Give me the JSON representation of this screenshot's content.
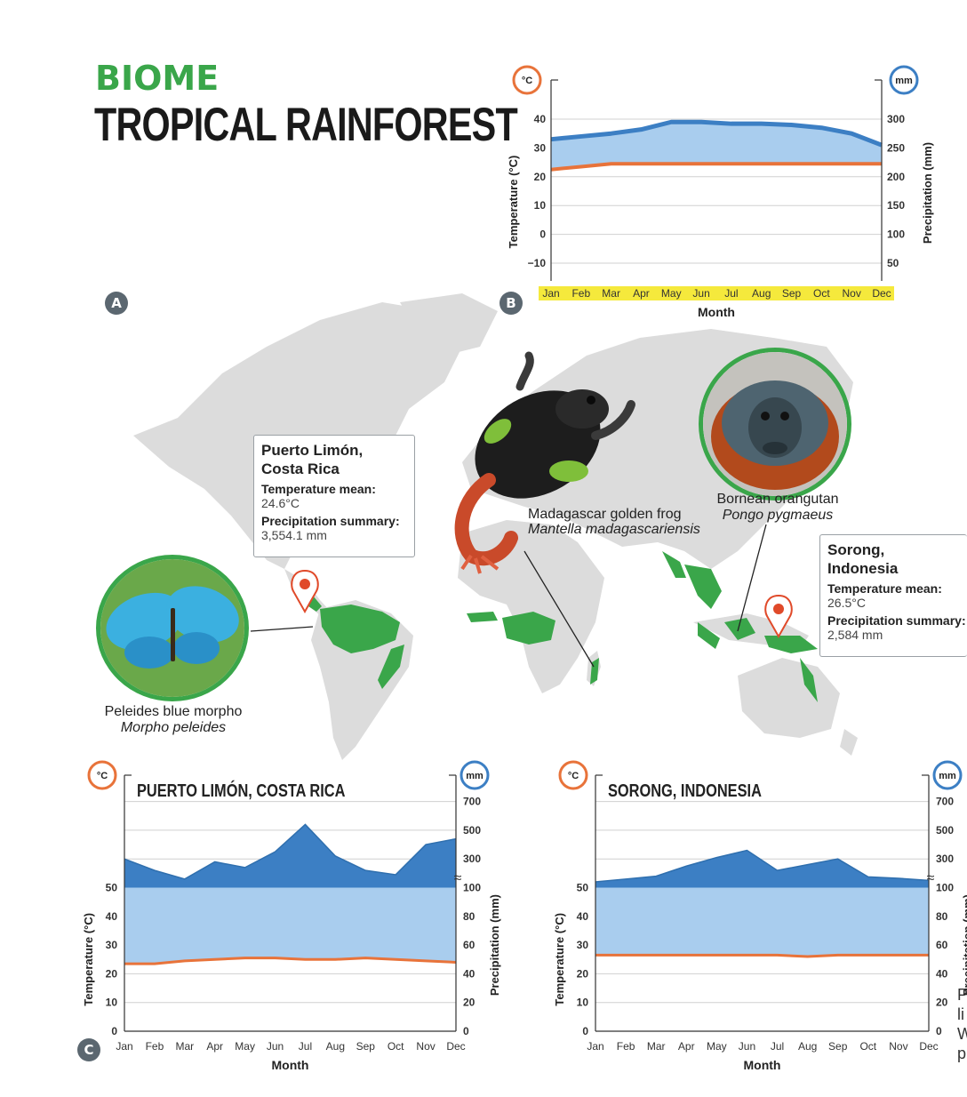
{
  "header": {
    "biome_label": "BIOME",
    "title": "TROPICAL RAINFOREST"
  },
  "badges": {
    "a": "A",
    "b": "B",
    "c": "C"
  },
  "colors": {
    "temp": "#e8733a",
    "precip_dark": "#3c7fc4",
    "precip_light": "#a9cdee",
    "green": "#3aa64a",
    "month_band": "#f5e93c",
    "map": "#dcdcdc"
  },
  "callouts": {
    "puerto_limon": {
      "location_line1": "Puerto Limón,",
      "location_line2": "Costa Rica",
      "temp_label": "Temperature mean:",
      "temp_value": "24.6°C",
      "precip_label": "Precipitation summary:",
      "precip_value": "3,554.1 mm"
    },
    "sorong": {
      "location_line1": "Sorong,",
      "location_line2": "Indonesia",
      "temp_label": "Temperature mean:",
      "temp_value": "26.5°C",
      "precip_label": "Precipitation summary:",
      "precip_value": "2,584 mm"
    }
  },
  "species": {
    "frog": {
      "common": "Madagascar golden frog",
      "scientific": "Mantella madagascariensis",
      "icon": "frog-icon"
    },
    "orangutan": {
      "common": "Bornean orangutan",
      "scientific": "Pongo pygmaeus",
      "icon": "orangutan-icon"
    },
    "butterfly": {
      "common": "Peleides blue morpho",
      "scientific": "Morpho peleides",
      "icon": "butterfly-icon"
    }
  },
  "side_note": {
    "lines": [
      "P",
      "li",
      "W",
      "p"
    ]
  },
  "chart_data": [
    {
      "id": "B",
      "type": "area",
      "title": "",
      "xlabel": "Month",
      "ylabel_left": "Temperature (°C)",
      "ylabel_right": "Precipitation (mm)",
      "unit_left": "°C",
      "unit_right": "mm",
      "categories": [
        "Jan",
        "Feb",
        "Mar",
        "Apr",
        "May",
        "Jun",
        "Jul",
        "Aug",
        "Sep",
        "Oct",
        "Nov",
        "Dec"
      ],
      "yticks_left": [
        "40",
        "30",
        "20",
        "10",
        "0",
        "−10"
      ],
      "yticks_right": [
        "300",
        "250",
        "200",
        "150",
        "100",
        "50"
      ],
      "ylim_left": [
        -10,
        40
      ],
      "ylim_right": [
        50,
        300
      ],
      "series": [
        {
          "name": "",
          "axis": "right",
          "values": [
            265,
            270,
            275,
            282,
            295,
            295,
            292,
            292,
            290,
            285,
            275,
            255
          ]
        },
        {
          "name": "",
          "axis": "left",
          "values": [
            22.5,
            23.5,
            24.5,
            24.5,
            24.5,
            24.5,
            24.5,
            24.5,
            24.5,
            24.5,
            24.5,
            24.5
          ]
        }
      ],
      "grid": true,
      "month_band_highlight": true
    },
    {
      "id": "C1",
      "type": "area",
      "title": "PUERTO LIMÓN, COSTA RICA",
      "xlabel": "Month",
      "ylabel_left": "Temperature (°C)",
      "ylabel_right": "Precipitation (mm)",
      "unit_left": "°C",
      "unit_right": "mm",
      "categories": [
        "Jan",
        "Feb",
        "Mar",
        "Apr",
        "May",
        "Jun",
        "Jul",
        "Aug",
        "Sep",
        "Oct",
        "Nov",
        "Dec"
      ],
      "yticks_left": [
        "50",
        "40",
        "30",
        "20",
        "10",
        "0"
      ],
      "yticks_right": [
        "700",
        "500",
        "300",
        "100",
        "80",
        "60",
        "40",
        "20",
        "0"
      ],
      "ylim_left": [
        0,
        50
      ],
      "break_marker": "≈",
      "series": [
        {
          "name": "",
          "axis": "right",
          "values": [
            300,
            220,
            160,
            280,
            240,
            350,
            540,
            320,
            220,
            190,
            400,
            440
          ]
        },
        {
          "name": "",
          "axis": "left",
          "values": [
            23.5,
            23.5,
            24.5,
            25,
            25.5,
            25.5,
            25,
            25,
            25.5,
            25,
            24.5,
            24
          ]
        }
      ],
      "grid": true
    },
    {
      "id": "C2",
      "type": "area",
      "title": "SORONG, INDONESIA",
      "xlabel": "Month",
      "ylabel_left": "Temperature (°C)",
      "ylabel_right": "Precipitation (mm)",
      "unit_left": "°C",
      "unit_right": "mm",
      "categories": [
        "Jan",
        "Feb",
        "Mar",
        "Apr",
        "May",
        "Jun",
        "Jul",
        "Aug",
        "Sep",
        "Oct",
        "Nov",
        "Dec"
      ],
      "yticks_left": [
        "50",
        "40",
        "30",
        "20",
        "10",
        "0"
      ],
      "yticks_right": [
        "700",
        "500",
        "300",
        "100",
        "80",
        "60",
        "40",
        "20",
        "0"
      ],
      "ylim_left": [
        0,
        50
      ],
      "break_marker": "≈",
      "series": [
        {
          "name": "",
          "axis": "right",
          "values": [
            140,
            160,
            180,
            250,
            310,
            360,
            220,
            260,
            300,
            175,
            165,
            150
          ]
        },
        {
          "name": "",
          "axis": "left",
          "values": [
            26.5,
            26.5,
            26.5,
            26.5,
            26.5,
            26.5,
            26.5,
            26,
            26.5,
            26.5,
            26.5,
            26.5
          ]
        }
      ],
      "grid": true
    }
  ]
}
